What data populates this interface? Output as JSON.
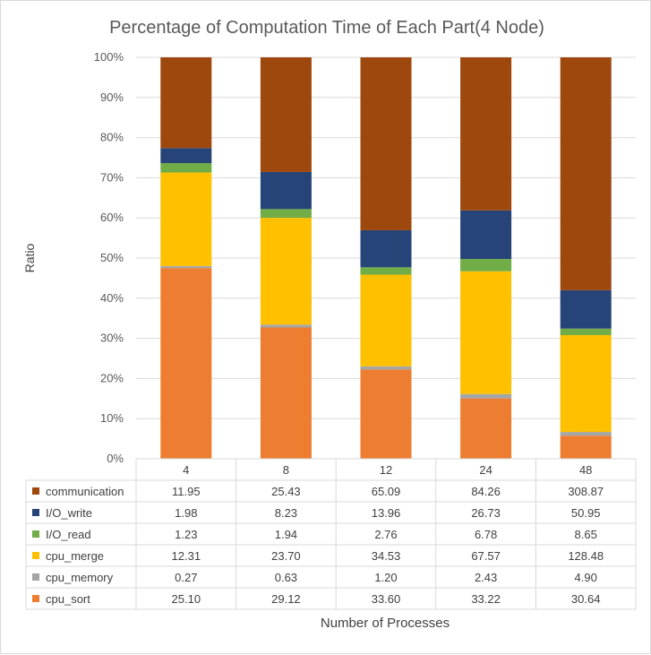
{
  "chart_data": {
    "type": "bar",
    "stacked": true,
    "normalized": true,
    "title": "Percentage of Computation Time of Each Part(4 Node)",
    "xlabel": "Number of Processes",
    "ylabel": "Ratio",
    "categories": [
      "4",
      "8",
      "12",
      "24",
      "48"
    ],
    "ylim": [
      0,
      100
    ],
    "yticks": [
      "0%",
      "10%",
      "20%",
      "30%",
      "40%",
      "50%",
      "60%",
      "70%",
      "80%",
      "90%",
      "100%"
    ],
    "grid": true,
    "legend": "data-table",
    "series": [
      {
        "name": "cpu_sort",
        "color": "#ed7d31",
        "values": [
          25.1,
          29.12,
          33.6,
          33.22,
          30.64
        ],
        "labels": [
          "25.10",
          "29.12",
          "33.60",
          "33.22",
          "30.64"
        ]
      },
      {
        "name": "cpu_memory",
        "color": "#a5a5a5",
        "values": [
          0.27,
          0.63,
          1.2,
          2.43,
          4.9
        ],
        "labels": [
          "0.27",
          "0.63",
          "1.20",
          "2.43",
          "4.90"
        ]
      },
      {
        "name": "cpu_merge",
        "color": "#ffc000",
        "values": [
          12.31,
          23.7,
          34.53,
          67.57,
          128.48
        ],
        "labels": [
          "12.31",
          "23.70",
          "34.53",
          "67.57",
          "128.48"
        ]
      },
      {
        "name": "I/O_read",
        "color": "#70ad47",
        "values": [
          1.23,
          1.94,
          2.76,
          6.78,
          8.65
        ],
        "labels": [
          "1.23",
          "1.94",
          "2.76",
          "6.78",
          "8.65"
        ]
      },
      {
        "name": "I/O_write",
        "color": "#264478",
        "values": [
          1.98,
          8.23,
          13.96,
          26.73,
          50.95
        ],
        "labels": [
          "1.98",
          "8.23",
          "13.96",
          "26.73",
          "50.95"
        ]
      },
      {
        "name": "communication",
        "color": "#9e480e",
        "values": [
          11.95,
          25.43,
          65.09,
          84.26,
          308.87
        ],
        "labels": [
          "11.95",
          "25.43",
          "65.09",
          "84.26",
          "308.87"
        ]
      }
    ],
    "table_row_order": [
      "communication",
      "I/O_write",
      "I/O_read",
      "cpu_merge",
      "cpu_memory",
      "cpu_sort"
    ]
  }
}
